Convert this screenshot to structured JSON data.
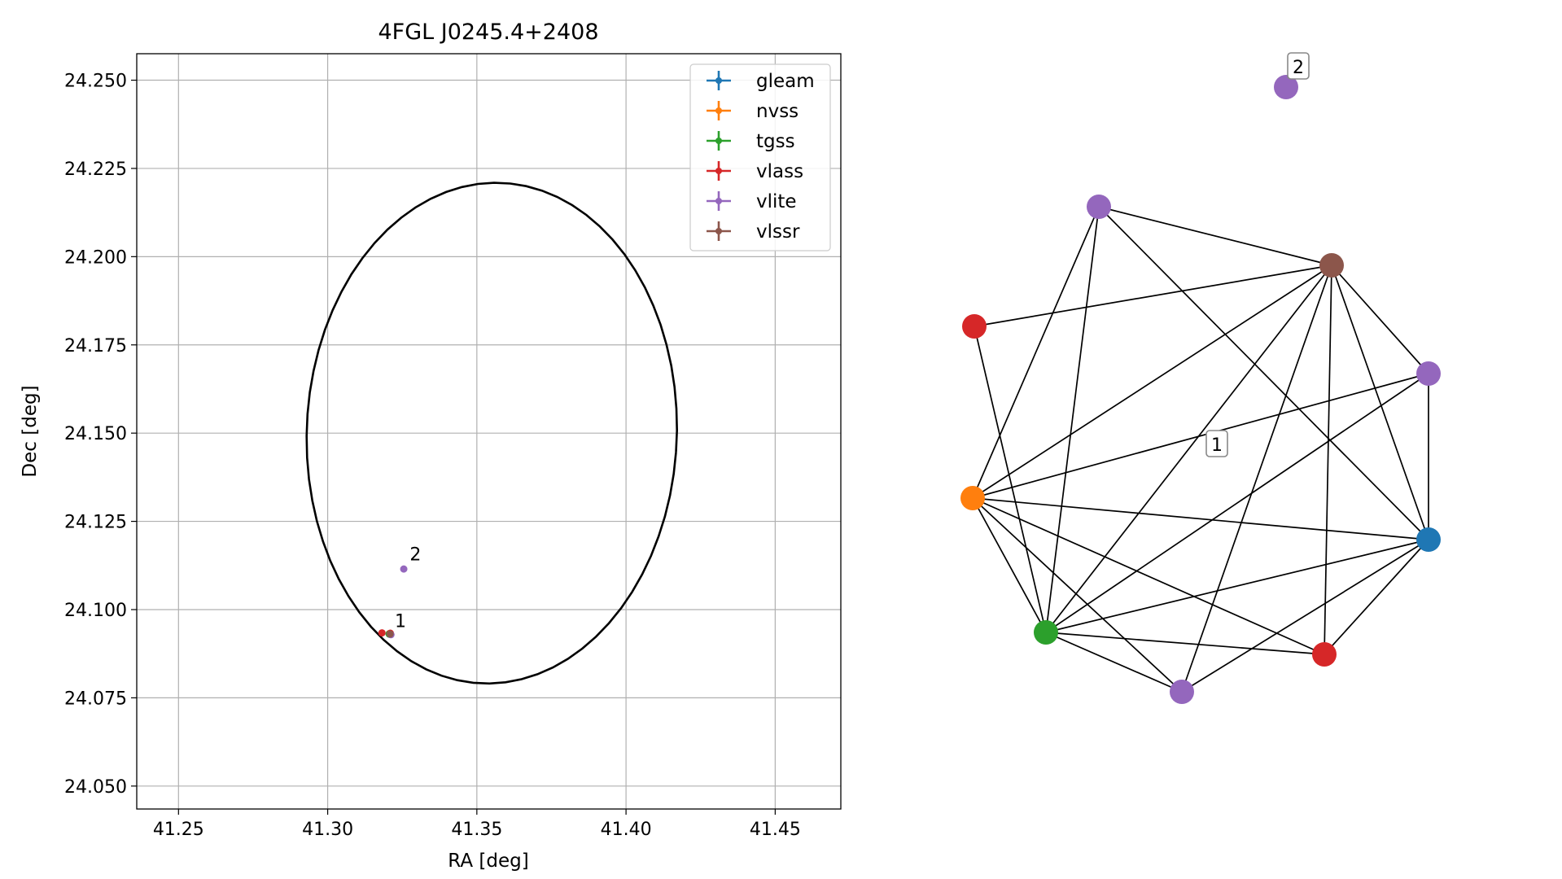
{
  "chart_data": [
    {
      "type": "scatter",
      "title": "4FGL J0245.4+2408",
      "xlabel": "RA [deg]",
      "ylabel": "Dec [deg]",
      "xlim": [
        41.236,
        41.472
      ],
      "ylim": [
        24.0435,
        24.2575
      ],
      "xticks": [
        41.25,
        41.3,
        41.35,
        41.4,
        41.45
      ],
      "xtick_labels": [
        "41.25",
        "41.30",
        "41.35",
        "41.40",
        "41.45"
      ],
      "yticks": [
        24.05,
        24.075,
        24.1,
        24.125,
        24.15,
        24.175,
        24.2,
        24.225,
        24.25
      ],
      "ytick_labels": [
        "24.050",
        "24.075",
        "24.100",
        "24.125",
        "24.150",
        "24.175",
        "24.200",
        "24.225",
        "24.250"
      ],
      "grid": true,
      "legend_position": "top-right",
      "ellipse": {
        "center": [
          41.355,
          24.15
        ],
        "semi_axis_ra": 0.062,
        "semi_axis_dec": 0.071,
        "rotation_deg": -5,
        "color": "#000000"
      },
      "series": [
        {
          "name": "gleam",
          "color": "#1f77b4",
          "points": [
            [
              41.3208,
              24.093
            ]
          ]
        },
        {
          "name": "nvss",
          "color": "#ff7f0e",
          "points": [
            [
              41.3207,
              24.0932
            ]
          ]
        },
        {
          "name": "tgss",
          "color": "#2ca02c",
          "points": [
            [
              41.3206,
              24.0931
            ]
          ]
        },
        {
          "name": "vlass",
          "color": "#d62728",
          "points": [
            [
              41.3182,
              24.0934
            ],
            [
              41.321,
              24.0933
            ]
          ]
        },
        {
          "name": "vlite",
          "color": "#9467bd",
          "points": [
            [
              41.3212,
              24.0929
            ],
            [
              41.3255,
              24.1115
            ]
          ]
        },
        {
          "name": "vlssr",
          "color": "#8c564b",
          "points": [
            [
              41.3209,
              24.0931
            ]
          ]
        }
      ],
      "annotations": [
        {
          "text": "1",
          "x": 41.3225,
          "y": 24.095
        },
        {
          "text": "2",
          "x": 41.3275,
          "y": 24.114
        }
      ]
    },
    {
      "type": "network",
      "nodes": [
        {
          "id": 0,
          "color": "#9467bd"
        },
        {
          "id": 1,
          "color": "#9467bd"
        },
        {
          "id": 2,
          "color": "#8c564b"
        },
        {
          "id": 3,
          "color": "#d62728"
        },
        {
          "id": 4,
          "color": "#9467bd"
        },
        {
          "id": 5,
          "color": "#ff7f0e"
        },
        {
          "id": 6,
          "color": "#1f77b4"
        },
        {
          "id": 7,
          "color": "#2ca02c"
        },
        {
          "id": 8,
          "color": "#d62728"
        },
        {
          "id": 9,
          "color": "#9467bd"
        }
      ],
      "edges": [
        [
          1,
          2
        ],
        [
          1,
          6
        ],
        [
          1,
          5
        ],
        [
          1,
          7
        ],
        [
          3,
          2
        ],
        [
          3,
          7
        ],
        [
          2,
          5
        ],
        [
          2,
          7
        ],
        [
          2,
          9
        ],
        [
          2,
          8
        ],
        [
          2,
          4
        ],
        [
          2,
          6
        ],
        [
          4,
          5
        ],
        [
          4,
          7
        ],
        [
          4,
          6
        ],
        [
          5,
          6
        ],
        [
          5,
          7
        ],
        [
          5,
          8
        ],
        [
          5,
          9
        ],
        [
          6,
          7
        ],
        [
          6,
          8
        ],
        [
          6,
          9
        ],
        [
          7,
          8
        ],
        [
          7,
          9
        ]
      ],
      "labels": [
        {
          "text": "1",
          "near_node": 1
        },
        {
          "text": "2",
          "near_node": 0
        }
      ]
    }
  ]
}
